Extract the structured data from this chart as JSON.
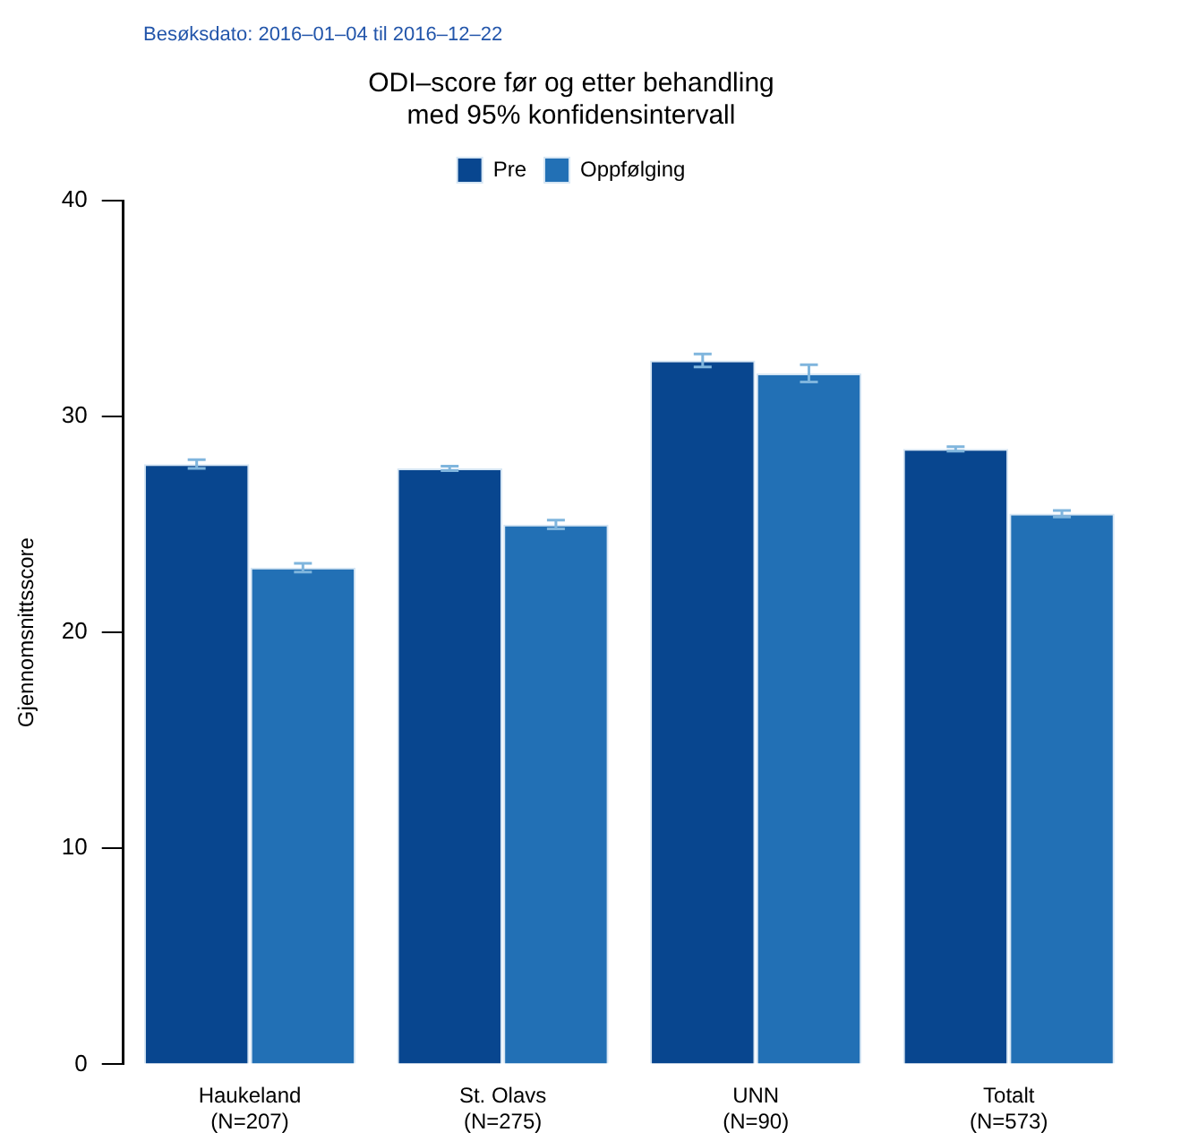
{
  "chart_data": {
    "type": "bar",
    "title": "ODI–score før og etter behandling\nmed 95% konfidensintervall",
    "subtitle": "Besøksdato: 2016–01–04 til 2016–12–22",
    "ylabel": "Gjennomsnittsscore",
    "categories": [
      "Haukeland\n(N=207)",
      "St. Olavs\n(N=275)",
      "UNN\n(N=90)",
      "Totalt\n(N=573)"
    ],
    "series": [
      {
        "name": "Pre",
        "color": "#08468f",
        "values": [
          27.8,
          27.6,
          32.6,
          28.5
        ],
        "errors": [
          0.2,
          0.1,
          0.3,
          0.1
        ]
      },
      {
        "name": "Oppfølging",
        "color": "#2270b5",
        "values": [
          23.0,
          25.0,
          32.0,
          25.5
        ],
        "errors": [
          0.2,
          0.2,
          0.4,
          0.15
        ]
      }
    ],
    "ylim": [
      0,
      40
    ],
    "yticks": [
      0,
      10,
      20,
      30,
      40
    ],
    "grid": false,
    "legend": "top"
  }
}
